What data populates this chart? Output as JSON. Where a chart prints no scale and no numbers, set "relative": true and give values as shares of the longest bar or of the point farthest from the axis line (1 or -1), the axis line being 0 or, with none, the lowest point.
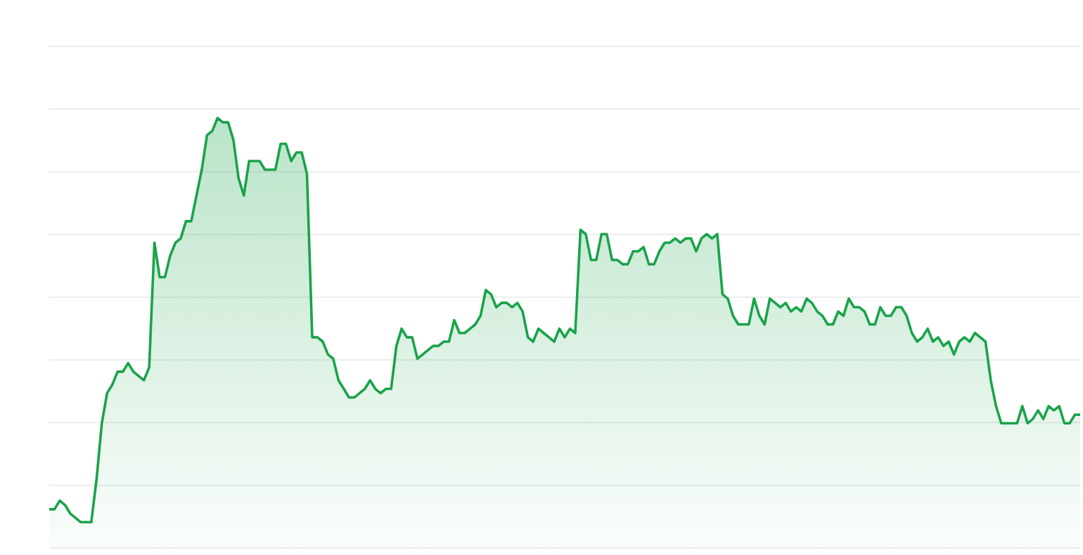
{
  "chart_data": {
    "type": "area",
    "relative": true,
    "grid": "y",
    "color": "#1aa34a",
    "categories": [
      null,
      null,
      null,
      null,
      null,
      null,
      null,
      null,
      null,
      null,
      null,
      null,
      null,
      null,
      null,
      null,
      null,
      null,
      null,
      null,
      null,
      null,
      null,
      null,
      null,
      null,
      null,
      null,
      null,
      null,
      null,
      null,
      null,
      null,
      null,
      null,
      null,
      null,
      null,
      null,
      null,
      null,
      null,
      null,
      null,
      null,
      null,
      null,
      null,
      null,
      null,
      null,
      null,
      null,
      null,
      null,
      null,
      null,
      null,
      null,
      null,
      null,
      null,
      null,
      null,
      null,
      null,
      null,
      null,
      null,
      null,
      null,
      null,
      null,
      null,
      null,
      null,
      null,
      null,
      null,
      null,
      null,
      null,
      null,
      null,
      null,
      null,
      null,
      null,
      null,
      null,
      null,
      null,
      null,
      null,
      null,
      null,
      null,
      null,
      null,
      null,
      null,
      null,
      null,
      null,
      null,
      null,
      null,
      null,
      null,
      null,
      null,
      null,
      null,
      null,
      null,
      null,
      null,
      null,
      null,
      null,
      null,
      null,
      null,
      null,
      null,
      null,
      null,
      null,
      null,
      null,
      null,
      null,
      null,
      null,
      null,
      null,
      null,
      null,
      null,
      null,
      null,
      null,
      null,
      null,
      null,
      null,
      null,
      null,
      null,
      null,
      null,
      null,
      null,
      null,
      null,
      null,
      null,
      null,
      null,
      null,
      null,
      null,
      null,
      null,
      null,
      null,
      null,
      null,
      null,
      null,
      null,
      null,
      null,
      null,
      null,
      null,
      null,
      null,
      null,
      null,
      null,
      null,
      null,
      null,
      null,
      null,
      null,
      null,
      null,
      null,
      null,
      null,
      null,
      null,
      null,
      null
    ],
    "values": [
      0.09,
      0.09,
      0.11,
      0.1,
      0.08,
      0.07,
      0.06,
      0.06,
      0.06,
      0.16,
      0.29,
      0.36,
      0.38,
      0.41,
      0.41,
      0.43,
      0.41,
      0.4,
      0.39,
      0.42,
      0.71,
      0.63,
      0.63,
      0.68,
      0.71,
      0.72,
      0.76,
      0.76,
      0.82,
      0.88,
      0.96,
      0.97,
      1,
      0.99,
      0.99,
      0.95,
      0.86,
      0.82,
      0.9,
      0.9,
      0.9,
      0.88,
      0.88,
      0.88,
      0.94,
      0.94,
      0.9,
      0.92,
      0.92,
      0.87,
      0.49,
      0.49,
      0.48,
      0.45,
      0.44,
      0.39,
      0.37,
      0.35,
      0.35,
      0.36,
      0.37,
      0.39,
      0.37,
      0.36,
      0.37,
      0.37,
      0.47,
      0.51,
      0.49,
      0.49,
      0.44,
      0.45,
      0.46,
      0.47,
      0.47,
      0.48,
      0.48,
      0.53,
      0.5,
      0.5,
      0.51,
      0.52,
      0.54,
      0.6,
      0.59,
      0.56,
      0.57,
      0.57,
      0.56,
      0.57,
      0.55,
      0.49,
      0.48,
      0.51,
      0.5,
      0.49,
      0.48,
      0.51,
      0.49,
      0.51,
      0.5,
      0.74,
      0.73,
      0.67,
      0.67,
      0.73,
      0.73,
      0.67,
      0.67,
      0.66,
      0.66,
      0.69,
      0.69,
      0.7,
      0.66,
      0.66,
      0.69,
      0.71,
      0.71,
      0.72,
      0.71,
      0.72,
      0.72,
      0.69,
      0.72,
      0.73,
      0.72,
      0.73,
      0.59,
      0.58,
      0.54,
      0.52,
      0.52,
      0.52,
      0.58,
      0.54,
      0.52,
      0.58,
      0.57,
      0.56,
      0.57,
      0.55,
      0.56,
      0.55,
      0.58,
      0.57,
      0.55,
      0.54,
      0.52,
      0.52,
      0.55,
      0.54,
      0.58,
      0.56,
      0.56,
      0.55,
      0.52,
      0.52,
      0.56,
      0.54,
      0.54,
      0.56,
      0.56,
      0.54,
      0.5,
      0.48,
      0.49,
      0.51,
      0.48,
      0.49,
      0.47,
      0.48,
      0.45,
      0.48,
      0.49,
      0.48,
      0.5,
      0.49,
      0.48,
      0.39,
      0.33,
      0.29,
      0.29,
      0.29,
      0.29,
      0.33,
      0.29,
      0.3,
      0.32,
      0.3,
      0.33,
      0.32,
      0.33,
      0.29,
      0.29,
      0.31,
      0.31
    ]
  }
}
